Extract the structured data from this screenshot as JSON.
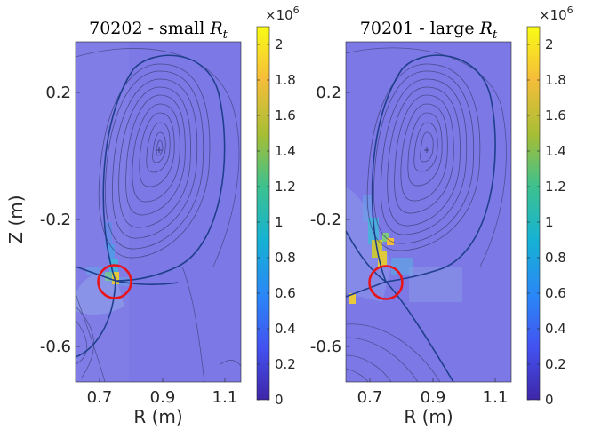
{
  "chart_data": [
    {
      "type": "heatmap",
      "title_text": "70202 - small ",
      "title_math": "R",
      "title_sub": "t",
      "xlabel": "R (m)",
      "ylabel": "Z (m)",
      "xlim": [
        0.62,
        1.14
      ],
      "ylim": [
        -0.75,
        0.37
      ],
      "xticks": [
        0.7,
        0.9,
        1.1
      ],
      "xtick_labels": [
        "0.7",
        "0.9",
        "1.1"
      ],
      "yticks": [
        0.2,
        -0.2,
        -0.6
      ],
      "ytick_labels": [
        "0.2",
        "-0.2",
        "-0.6"
      ],
      "colorbar": {
        "min": 0,
        "max": 2.1,
        "exponent_label": "×10",
        "exponent_power": "6",
        "ticks": [
          0,
          0.2,
          0.4,
          0.6,
          0.8,
          1,
          1.2,
          1.4,
          1.6,
          1.8,
          2
        ],
        "tick_labels": [
          "0",
          "0.2",
          "0.4",
          "0.6",
          "0.8",
          "1",
          "1.2",
          "1.4",
          "1.6",
          "1.8",
          "2"
        ]
      },
      "magnetic_axis": [
        0.885,
        0.05
      ],
      "x_point": [
        0.745,
        -0.395
      ],
      "highlight_circle": {
        "center": [
          0.745,
          -0.395
        ],
        "color": "#e8141b"
      }
    },
    {
      "type": "heatmap",
      "title_text": "70201 - large ",
      "title_math": "R",
      "title_sub": "t",
      "xlabel": "R (m)",
      "ylabel": "",
      "xlim": [
        0.62,
        1.14
      ],
      "ylim": [
        -0.75,
        0.37
      ],
      "xticks": [
        0.7,
        0.9,
        1.1
      ],
      "xtick_labels": [
        "0.7",
        "0.9",
        "1.1"
      ],
      "yticks": [
        0.2,
        -0.2,
        -0.6
      ],
      "ytick_labels": [
        "0.2",
        "-0.2",
        "-0.6"
      ],
      "colorbar": {
        "min": 0,
        "max": 2.1,
        "exponent_label": "×10",
        "exponent_power": "6",
        "ticks": [
          0,
          0.2,
          0.4,
          0.6,
          0.8,
          1,
          1.2,
          1.4,
          1.6,
          1.8,
          2
        ],
        "tick_labels": [
          "0",
          "0.2",
          "0.4",
          "0.6",
          "0.8",
          "1",
          "1.2",
          "1.4",
          "1.6",
          "1.8",
          "2"
        ]
      },
      "magnetic_axis": [
        0.875,
        0.05
      ],
      "x_point": [
        0.745,
        -0.405
      ],
      "highlight_circle": {
        "center": [
          0.745,
          -0.405
        ],
        "color": "#e8141b"
      }
    }
  ],
  "colors": {
    "background_field": "#7c79e6",
    "contour": "#2b2f63",
    "separatrix": "#1f3f8c",
    "circle": "#e8141b",
    "colormap": [
      "#3e26a8",
      "#4352f0",
      "#2a87f7",
      "#16b2d3",
      "#3cc18f",
      "#a6be35",
      "#f6bd3a",
      "#f9fb15"
    ]
  }
}
